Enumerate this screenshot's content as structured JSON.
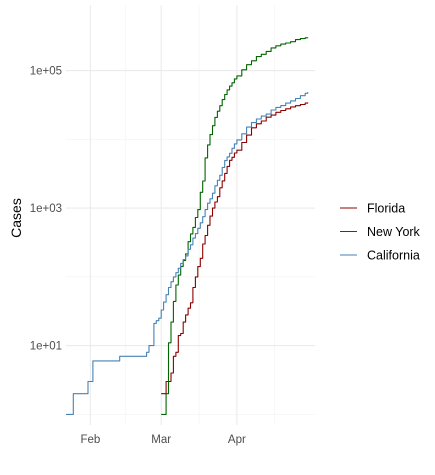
{
  "chart_data": {
    "type": "line",
    "title": "",
    "xlabel": "",
    "ylabel": "Cases",
    "y_scale": "log10",
    "ylim": [
      0.7,
      900000
    ],
    "xlim": [
      "2020-01-22",
      "2020-05-03"
    ],
    "x_ticks": [
      {
        "date": "2020-02-01",
        "label": "Feb"
      },
      {
        "date": "2020-03-01",
        "label": "Mar"
      },
      {
        "date": "2020-04-01",
        "label": "Apr"
      }
    ],
    "y_ticks": [
      {
        "value": 10,
        "label": "1e+01"
      },
      {
        "value": 1000,
        "label": "1e+03"
      },
      {
        "value": 100000,
        "label": "1e+05"
      }
    ],
    "grid": true,
    "legend_position": "right",
    "series": [
      {
        "name": "Florida",
        "color": "#8b0000",
        "x": [
          "2020-03-01",
          "2020-03-02",
          "2020-03-03",
          "2020-03-04",
          "2020-03-05",
          "2020-03-06",
          "2020-03-07",
          "2020-03-08",
          "2020-03-09",
          "2020-03-10",
          "2020-03-11",
          "2020-03-12",
          "2020-03-13",
          "2020-03-14",
          "2020-03-15",
          "2020-03-16",
          "2020-03-17",
          "2020-03-18",
          "2020-03-19",
          "2020-03-20",
          "2020-03-21",
          "2020-03-22",
          "2020-03-23",
          "2020-03-24",
          "2020-03-25",
          "2020-03-26",
          "2020-03-27",
          "2020-03-28",
          "2020-03-29",
          "2020-03-30",
          "2020-03-31",
          "2020-04-01",
          "2020-04-03",
          "2020-04-05",
          "2020-04-07",
          "2020-04-09",
          "2020-04-11",
          "2020-04-13",
          "2020-04-15",
          "2020-04-17",
          "2020-04-19",
          "2020-04-21",
          "2020-04-23",
          "2020-04-25",
          "2020-04-27",
          "2020-04-29",
          "2020-04-30"
        ],
        "values": [
          2,
          2,
          3,
          3,
          4,
          7,
          8,
          14,
          15,
          22,
          28,
          35,
          42,
          70,
          100,
          141,
          186,
          300,
          400,
          563,
          764,
          1000,
          1227,
          1467,
          1977,
          2484,
          3198,
          4038,
          4950,
          5473,
          6338,
          6955,
          9008,
          11545,
          14747,
          16826,
          18494,
          21019,
          22519,
          24759,
          26314,
          27869,
          29648,
          30839,
          32138,
          33690,
          34500
        ]
      },
      {
        "name": "New York",
        "color": "#006400",
        "x": [
          "2020-03-01",
          "2020-03-02",
          "2020-03-03",
          "2020-03-04",
          "2020-03-05",
          "2020-03-06",
          "2020-03-07",
          "2020-03-08",
          "2020-03-09",
          "2020-03-10",
          "2020-03-11",
          "2020-03-12",
          "2020-03-13",
          "2020-03-14",
          "2020-03-15",
          "2020-03-16",
          "2020-03-17",
          "2020-03-18",
          "2020-03-19",
          "2020-03-20",
          "2020-03-21",
          "2020-03-22",
          "2020-03-23",
          "2020-03-24",
          "2020-03-25",
          "2020-03-26",
          "2020-03-27",
          "2020-03-28",
          "2020-03-29",
          "2020-03-30",
          "2020-03-31",
          "2020-04-01",
          "2020-04-03",
          "2020-04-05",
          "2020-04-07",
          "2020-04-09",
          "2020-04-11",
          "2020-04-13",
          "2020-04-15",
          "2020-04-17",
          "2020-04-19",
          "2020-04-21",
          "2020-04-23",
          "2020-04-25",
          "2020-04-27",
          "2020-04-29",
          "2020-04-30"
        ],
        "values": [
          1,
          1,
          2,
          11,
          22,
          44,
          76,
          106,
          142,
          173,
          216,
          325,
          421,
          524,
          729,
          950,
          1700,
          2480,
          5365,
          8310,
          11710,
          15800,
          20884,
          25681,
          30841,
          37877,
          44876,
          52318,
          59513,
          66497,
          75795,
          83712,
          102863,
          122031,
          138863,
          159937,
          172358,
          190288,
          213779,
          229642,
          242786,
          251690,
          263460,
          282143,
          291996,
          299691,
          304372
        ]
      },
      {
        "name": "California",
        "color": "#4682b4",
        "x": [
          "2020-01-22",
          "2020-01-25",
          "2020-01-26",
          "2020-01-31",
          "2020-02-01",
          "2020-02-02",
          "2020-02-10",
          "2020-02-13",
          "2020-02-21",
          "2020-02-24",
          "2020-02-25",
          "2020-02-26",
          "2020-02-27",
          "2020-02-28",
          "2020-02-29",
          "2020-03-01",
          "2020-03-02",
          "2020-03-03",
          "2020-03-04",
          "2020-03-05",
          "2020-03-06",
          "2020-03-07",
          "2020-03-08",
          "2020-03-09",
          "2020-03-10",
          "2020-03-11",
          "2020-03-12",
          "2020-03-13",
          "2020-03-14",
          "2020-03-15",
          "2020-03-16",
          "2020-03-17",
          "2020-03-18",
          "2020-03-19",
          "2020-03-20",
          "2020-03-21",
          "2020-03-22",
          "2020-03-23",
          "2020-03-24",
          "2020-03-25",
          "2020-03-26",
          "2020-03-27",
          "2020-03-28",
          "2020-03-29",
          "2020-03-30",
          "2020-03-31",
          "2020-04-01",
          "2020-04-03",
          "2020-04-05",
          "2020-04-07",
          "2020-04-09",
          "2020-04-11",
          "2020-04-13",
          "2020-04-15",
          "2020-04-17",
          "2020-04-19",
          "2020-04-21",
          "2020-04-23",
          "2020-04-25",
          "2020-04-27",
          "2020-04-29",
          "2020-04-30"
        ],
        "values": [
          1,
          2,
          2,
          3,
          3,
          6,
          6,
          7,
          7,
          8,
          10,
          10,
          21,
          23,
          25,
          33,
          43,
          55,
          70,
          85,
          100,
          115,
          133,
          157,
          179,
          202,
          252,
          293,
          366,
          426,
          508,
          611,
          751,
          952,
          1177,
          1364,
          1646,
          2108,
          2538,
          2998,
          3899,
          4914,
          5565,
          6266,
          7414,
          8583,
          9816,
          12026,
          15076,
          17540,
          19773,
          21794,
          23323,
          26686,
          29157,
          30978,
          33686,
          36303,
          39254,
          43139,
          46754,
          48747
        ]
      }
    ]
  }
}
